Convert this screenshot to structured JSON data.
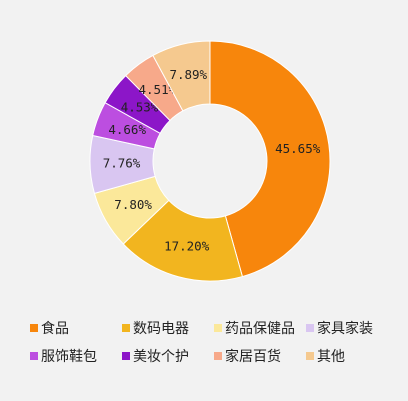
{
  "chart_data": {
    "type": "pie",
    "variant": "donut",
    "title": "",
    "categories": [
      "食品",
      "数码电器",
      "药品保健品",
      "家具家装",
      "服饰鞋包",
      "美妆个护",
      "家居百货",
      "其他"
    ],
    "values": [
      45.65,
      17.2,
      7.8,
      7.76,
      4.66,
      4.53,
      4.51,
      7.89
    ],
    "labels": [
      "45.65%",
      "17.20%",
      "7.80%",
      "7.76%",
      "4.66%",
      "4.53%",
      "4.51%",
      "7.89%"
    ],
    "colors": [
      "#f7860c",
      "#f2b51f",
      "#fbe89a",
      "#d9c6f1",
      "#bc4ee0",
      "#8c16c8",
      "#f7a98a",
      "#f5c98f"
    ],
    "legend_position": "bottom"
  }
}
